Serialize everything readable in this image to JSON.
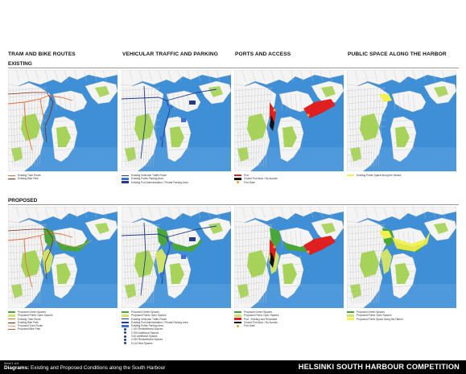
{
  "columns": [
    "TRAM AND BIKE ROUTES",
    "VEHICULAR TRAFFIC AND PARKING",
    "PORTS AND ACCESS",
    "PUBLIC SPACE ALONG THE HARBOR"
  ],
  "rows": [
    "EXISTING",
    "PROPOSED"
  ],
  "legends": {
    "existing": [
      [
        {
          "label": "Existing Tram Route",
          "color": "#e0703a",
          "kind": "line"
        },
        {
          "label": "Existing Bike Path",
          "color": "#7a2a1a",
          "kind": "line"
        }
      ],
      [
        {
          "label": "Existing Vehicular Traffic Route",
          "color": "#1f3b8a",
          "kind": "line"
        },
        {
          "label": "Existing Public Parking Area",
          "color": "#3f6fd0",
          "kind": "fill"
        },
        {
          "label": "Existing Port Administration / Private Parking Area",
          "color": "#253a8c",
          "kind": "fill"
        }
      ],
      [
        {
          "label": "Port",
          "color": "#e02020",
          "kind": "fill"
        },
        {
          "label": "Closed Port Area / No Access",
          "color": "#111111",
          "kind": "fill"
        },
        {
          "label": "Port Gate",
          "color": "#f0a030",
          "kind": "dot"
        }
      ],
      [
        {
          "label": "Existing Public Space Along the Harbor",
          "color": "#f2f04a",
          "kind": "fill"
        }
      ]
    ],
    "proposed": [
      [
        {
          "label": "Proposed Green Spaces",
          "color": "#4aa63a",
          "kind": "fill"
        },
        {
          "label": "Proposed Public Open Spaces",
          "color": "#cfe36a",
          "kind": "fill"
        },
        {
          "label": "Existing Tram Route",
          "color": "#e0703a",
          "kind": "line"
        },
        {
          "label": "Existing Bike Path",
          "color": "#7a2a1a",
          "kind": "line"
        },
        {
          "label": "Proposed Tram Route",
          "color": "#f0a060",
          "kind": "line"
        },
        {
          "label": "Proposed Bike Path",
          "color": "#b05a40",
          "kind": "line"
        }
      ],
      [
        {
          "label": "Proposed Green Spaces",
          "color": "#4aa63a",
          "kind": "fill"
        },
        {
          "label": "Proposed Public Open Spaces",
          "color": "#cfe36a",
          "kind": "fill"
        },
        {
          "label": "Existing Vehicular Traffic Route",
          "color": "#1f3b8a",
          "kind": "line"
        },
        {
          "label": "Existing Port Administration / Private Parking Area",
          "color": "#253a8c",
          "kind": "fill"
        },
        {
          "label": "Existing Public Parking Area",
          "color": "#3f6fd0",
          "kind": "fill"
        },
        {
          "label": "1 100 Redistributed Spaces",
          "color": "#1f3b8a",
          "kind": "dot"
        },
        {
          "label": "2 206 Additional Spaces",
          "color": "#1f3b8a",
          "kind": "dot"
        },
        {
          "label": "3 40 Additional Spaces",
          "color": "#1f3b8a",
          "kind": "dot"
        },
        {
          "label": "4 150 Redistributed Spaces",
          "color": "#1f3b8a",
          "kind": "dot"
        },
        {
          "label": "5 110 New Spaces",
          "color": "#1f3b8a",
          "kind": "dot"
        }
      ],
      [
        {
          "label": "Proposed Green Spaces",
          "color": "#4aa63a",
          "kind": "fill"
        },
        {
          "label": "Proposed Public Open Spaces",
          "color": "#cfe36a",
          "kind": "fill"
        },
        {
          "label": "Port - Existing and Relocated",
          "color": "#e02020",
          "kind": "fill"
        },
        {
          "label": "Closed Port Area / No Access",
          "color": "#111111",
          "kind": "fill"
        },
        {
          "label": "Port Gate",
          "color": "#f0a030",
          "kind": "dot"
        }
      ],
      [
        {
          "label": "Proposed Green Spaces",
          "color": "#4aa63a",
          "kind": "fill"
        },
        {
          "label": "Proposed Public Open Spaces",
          "color": "#cfe36a",
          "kind": "fill"
        },
        {
          "label": "Proposed Public Space Along the Harbor",
          "color": "#f2f04a",
          "kind": "fill"
        }
      ]
    ]
  },
  "footer": {
    "sheet": "Sheet 1 of 8",
    "diagram_label": "Diagrams:",
    "diagram_title": "Existing and Proposed Conditions along the South Harbour",
    "competition": "HELSINKI SOUTH HARBOUR COMPETITION"
  },
  "colors": {
    "water": "#3e8fd6",
    "land": "#f4f4f4",
    "park": "#9fcf4a",
    "block": "#ffffff"
  }
}
